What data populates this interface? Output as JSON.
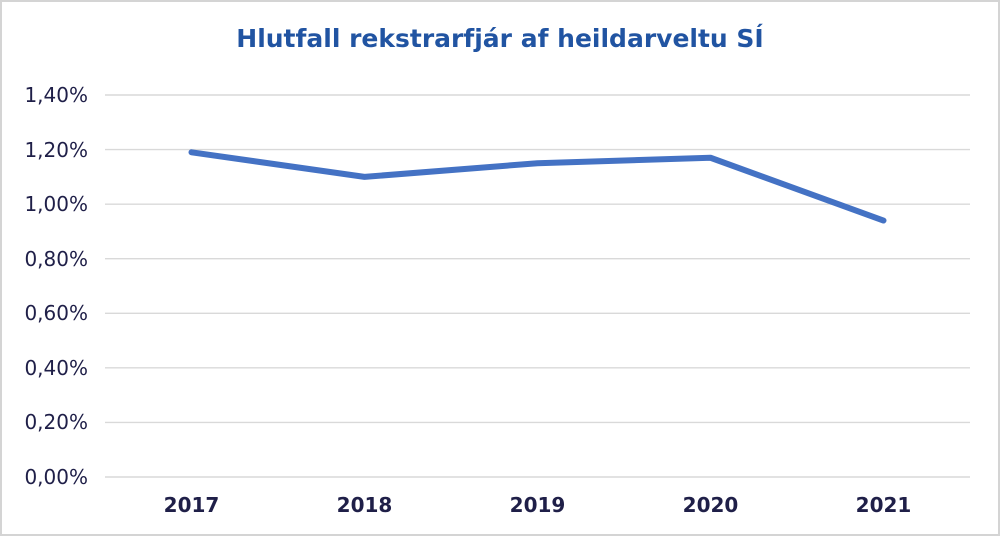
{
  "chart_data": {
    "type": "line",
    "title": "Hlutfall rekstrarfjár af heildarveltu SÍ",
    "categories": [
      "2017",
      "2018",
      "2019",
      "2020",
      "2021"
    ],
    "series": [
      {
        "name": "Hlutfall rekstrarfjár af heildarveltu",
        "values": [
          1.19,
          1.1,
          1.15,
          1.17,
          0.94
        ]
      }
    ],
    "unit": "%",
    "xlabel": "",
    "ylabel": "",
    "ylim": [
      0,
      1.4
    ],
    "y_axis": {
      "min": 0,
      "max": 1.4,
      "step": 0.2,
      "tick_labels": [
        "0,00%",
        "0,20%",
        "0,40%",
        "0,60%",
        "0,80%",
        "1,00%",
        "1,20%",
        "1,40%"
      ]
    },
    "grid": true,
    "legend": false,
    "colors": {
      "line": "#4472c4",
      "title": "#2154a2",
      "axis_labels": "#1f1f48",
      "gridline": "#d9d9d9",
      "border": "#d4d4d4"
    }
  }
}
